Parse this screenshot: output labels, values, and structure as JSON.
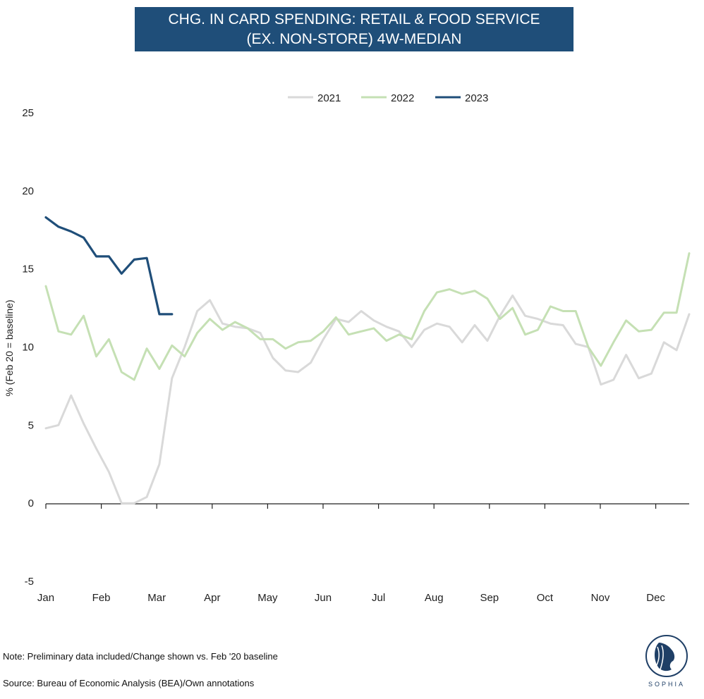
{
  "title_lines": [
    "CHG. IN CARD SPENDING: RETAIL & FOOD SERVICE",
    "(EX. NON-STORE) 4W-MEDIAN"
  ],
  "note": "Note: Preliminary data included/Change shown vs. Feb '20 baseline",
  "source": "Source: Bureau of Economic Analysis (BEA)/Own annotations",
  "logo": {
    "text": "SOPHIA",
    "color": "#1f3f66"
  },
  "chart_data": {
    "type": "line",
    "title": "CHG. IN CARD SPENDING: RETAIL & FOOD SERVICE (EX. NON-STORE) 4W-MEDIAN",
    "xlabel": "",
    "ylabel": "% (Feb 20 = baseline)",
    "ylim": [
      -5,
      25
    ],
    "yticks": [
      -5,
      0,
      5,
      10,
      15,
      20,
      25
    ],
    "xlim": [
      0,
      51
    ],
    "month_labels": [
      "Jan",
      "Feb",
      "Mar",
      "Apr",
      "May",
      "Jun",
      "Jul",
      "Aug",
      "Sep",
      "Oct",
      "Nov",
      "Dec"
    ],
    "legend_position": "top-center",
    "x_unit": "week of year (0 = first week of Jan)",
    "series": [
      {
        "name": "2021",
        "color": "#d9d9d9",
        "x": [
          0,
          1,
          2,
          3,
          4,
          5,
          6,
          7,
          8,
          9,
          10,
          11,
          12,
          13,
          14,
          15,
          16,
          17,
          18,
          19,
          20,
          21,
          22,
          23,
          24,
          25,
          26,
          27,
          28,
          29,
          30,
          31,
          32,
          33,
          34,
          35,
          36,
          37,
          38,
          39,
          40,
          41,
          42,
          43,
          44,
          45,
          46,
          47,
          48,
          49,
          50,
          51
        ],
        "values": [
          4.8,
          5.0,
          6.9,
          5.1,
          3.5,
          2.0,
          0.0,
          0.0,
          0.4,
          2.5,
          8.0,
          10.0,
          12.3,
          13.0,
          11.5,
          11.3,
          11.2,
          10.9,
          9.3,
          8.5,
          8.4,
          9.0,
          10.5,
          11.8,
          11.6,
          12.3,
          11.7,
          11.3,
          11.0,
          10.0,
          11.1,
          11.5,
          11.3,
          10.3,
          11.4,
          10.4,
          12.0,
          13.3,
          12.0,
          11.8,
          11.5,
          11.4,
          10.2,
          10.0,
          7.6,
          7.9,
          9.5,
          8.0,
          8.3,
          10.3,
          9.8,
          12.1
        ]
      },
      {
        "name": "2022",
        "color": "#c5e0b4",
        "x": [
          0,
          1,
          2,
          3,
          4,
          5,
          6,
          7,
          8,
          9,
          10,
          11,
          12,
          13,
          14,
          15,
          16,
          17,
          18,
          19,
          20,
          21,
          22,
          23,
          24,
          25,
          26,
          27,
          28,
          29,
          30,
          31,
          32,
          33,
          34,
          35,
          36,
          37,
          38,
          39,
          40,
          41,
          42,
          43,
          44,
          45,
          46,
          47,
          48,
          49,
          50,
          51
        ],
        "values": [
          13.9,
          11.0,
          10.8,
          12.0,
          9.4,
          10.5,
          8.4,
          7.9,
          9.9,
          8.6,
          10.1,
          9.4,
          10.9,
          11.8,
          11.1,
          11.6,
          11.2,
          10.5,
          10.5,
          9.9,
          10.3,
          10.4,
          11.0,
          11.9,
          10.8,
          11.0,
          11.2,
          10.4,
          10.8,
          10.5,
          12.3,
          13.5,
          13.7,
          13.4,
          13.6,
          13.1,
          11.8,
          12.5,
          10.8,
          11.1,
          12.6,
          12.3,
          12.3,
          10.0,
          8.8,
          10.3,
          11.7,
          11.0,
          11.1,
          12.2,
          12.2,
          16.0
        ]
      },
      {
        "name": "2023",
        "color": "#1f4e79",
        "x": [
          0,
          1,
          2,
          3,
          4,
          5,
          6,
          7,
          8,
          9,
          10
        ],
        "values": [
          18.3,
          17.7,
          17.4,
          17.0,
          15.8,
          15.8,
          14.7,
          15.6,
          15.7,
          12.1,
          12.1
        ]
      }
    ]
  }
}
